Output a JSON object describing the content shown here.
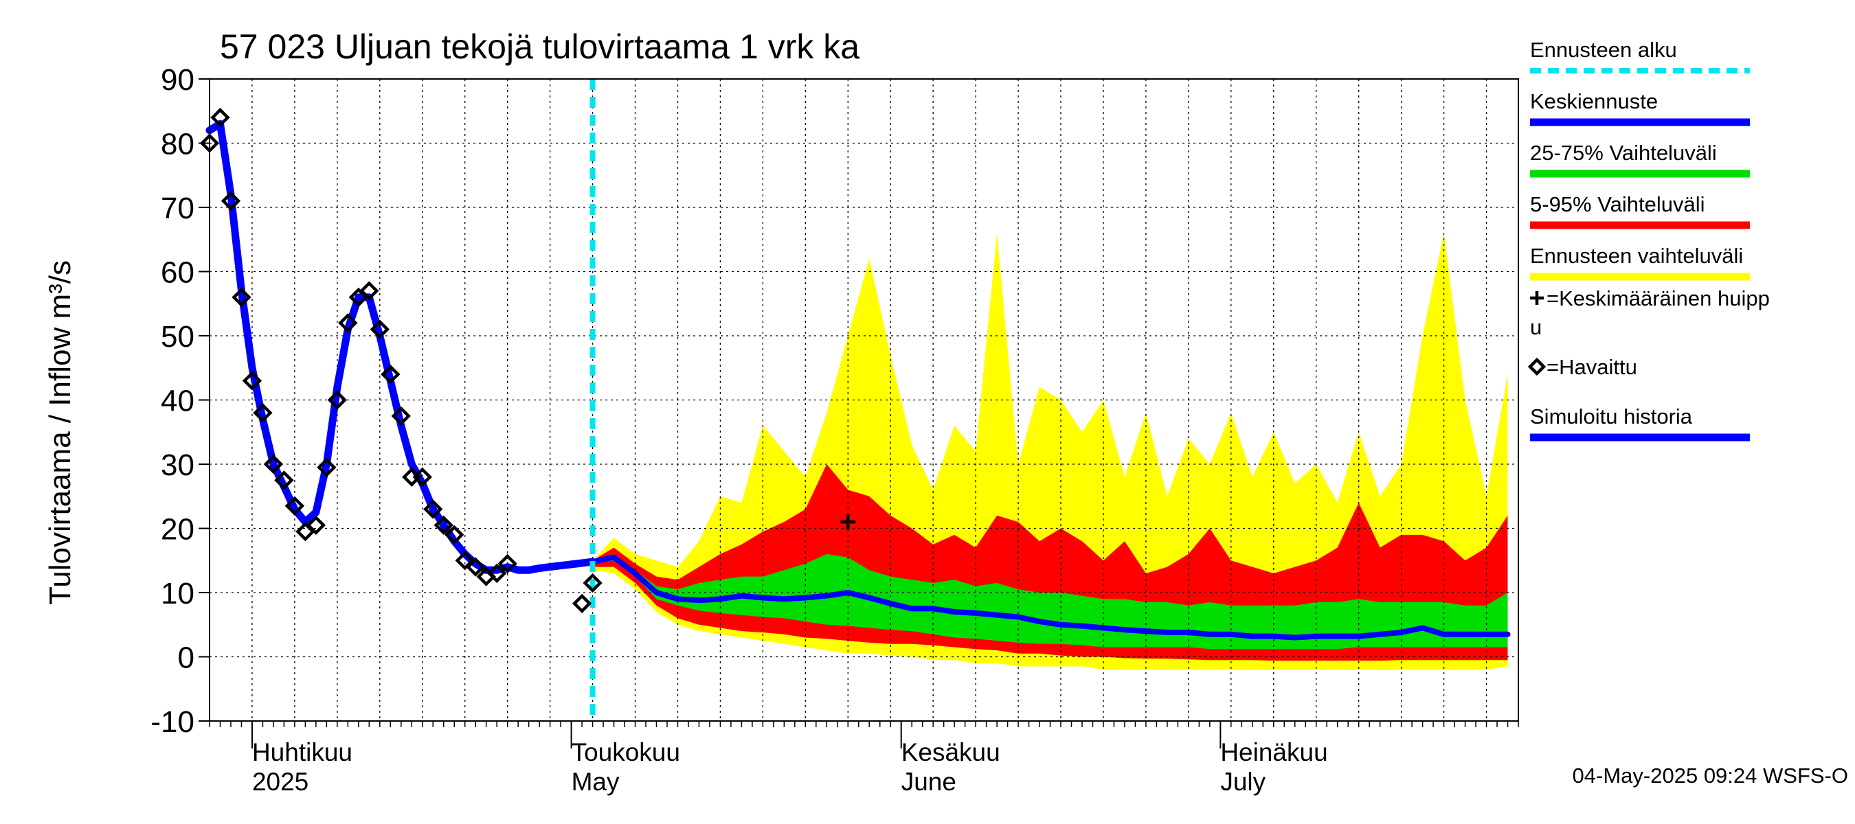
{
  "chart_data": {
    "type": "area",
    "title": "57 023 Uljuan tekojä tulovirtaama 1 vrk ka",
    "ylabel": "Tulovirtaama / Inflow   m³/s",
    "ylim": [
      -10,
      90
    ],
    "yticks": [
      -10,
      0,
      10,
      20,
      30,
      40,
      50,
      60,
      70,
      80,
      90
    ],
    "xlim": [
      "2025-03-28",
      "2025-07-29"
    ],
    "x_month_labels": [
      {
        "date": "2025-04-01",
        "fi": "Huhtikuu",
        "en": "2025"
      },
      {
        "date": "2025-05-01",
        "fi": "Toukokuu",
        "en": "May"
      },
      {
        "date": "2025-06-01",
        "fi": "Kesäkuu",
        "en": "June"
      },
      {
        "date": "2025-07-01",
        "fi": "Heinäkuu",
        "en": "July"
      }
    ],
    "grid": true,
    "legend_position": "right",
    "forecast_start": "2025-05-03",
    "footer": "04-May-2025 09:24 WSFS-O",
    "legend": [
      {
        "label": "Ennusteen alku",
        "color": "#00e5ee",
        "style": "dashed"
      },
      {
        "label": "Keskiennuste",
        "color": "#0000ff",
        "style": "solid"
      },
      {
        "label": "25-75% Vaihteluväli",
        "color": "#00dd00",
        "style": "solid"
      },
      {
        "label": "5-95% Vaihteluväli",
        "color": "#ff0000",
        "style": "solid"
      },
      {
        "label": "Ennusteen vaihteluväli",
        "color": "#ffff00",
        "style": "solid"
      },
      {
        "label": "=Keskimääräinen huippu",
        "color": "#000000",
        "style": "plus"
      },
      {
        "label": "=Havaittu",
        "color": "#000000",
        "style": "diamond"
      },
      {
        "label": "Simuloitu historia",
        "color": "#0000ff",
        "style": "solid"
      }
    ],
    "observed": {
      "name": "Havaittu",
      "points": [
        [
          "2025-03-28",
          80
        ],
        [
          "2025-03-29",
          84
        ],
        [
          "2025-03-30",
          71
        ],
        [
          "2025-03-31",
          56
        ],
        [
          "2025-04-01",
          43
        ],
        [
          "2025-04-02",
          38
        ],
        [
          "2025-04-03",
          30
        ],
        [
          "2025-04-04",
          27.5
        ],
        [
          "2025-04-05",
          23.5
        ],
        [
          "2025-04-06",
          19.5
        ],
        [
          "2025-04-07",
          20.5
        ],
        [
          "2025-04-08",
          29.5
        ],
        [
          "2025-04-09",
          40
        ],
        [
          "2025-04-10",
          52
        ],
        [
          "2025-04-11",
          56
        ],
        [
          "2025-04-12",
          57
        ],
        [
          "2025-04-13",
          51
        ],
        [
          "2025-04-14",
          44
        ],
        [
          "2025-04-15",
          37.5
        ],
        [
          "2025-04-16",
          28
        ],
        [
          "2025-04-17",
          28
        ],
        [
          "2025-04-18",
          23
        ],
        [
          "2025-04-19",
          20.5
        ],
        [
          "2025-04-20",
          19
        ],
        [
          "2025-04-21",
          15
        ],
        [
          "2025-04-22",
          14
        ],
        [
          "2025-04-23",
          12.5
        ],
        [
          "2025-04-24",
          13
        ],
        [
          "2025-04-25",
          14.5
        ],
        [
          "2025-05-02",
          8.3
        ],
        [
          "2025-05-03",
          11.5
        ]
      ]
    },
    "simulated_history": {
      "name": "Simuloitu historia",
      "points": [
        [
          "2025-03-28",
          82
        ],
        [
          "2025-03-29",
          83
        ],
        [
          "2025-03-30",
          72
        ],
        [
          "2025-03-31",
          57
        ],
        [
          "2025-04-01",
          45
        ],
        [
          "2025-04-02",
          37
        ],
        [
          "2025-04-03",
          30
        ],
        [
          "2025-04-04",
          26.5
        ],
        [
          "2025-04-05",
          23
        ],
        [
          "2025-04-06",
          21
        ],
        [
          "2025-04-07",
          22.5
        ],
        [
          "2025-04-08",
          30
        ],
        [
          "2025-04-09",
          42
        ],
        [
          "2025-04-10",
          51
        ],
        [
          "2025-04-11",
          56
        ],
        [
          "2025-04-12",
          56
        ],
        [
          "2025-04-13",
          50
        ],
        [
          "2025-04-14",
          43
        ],
        [
          "2025-04-15",
          36
        ],
        [
          "2025-04-16",
          30
        ],
        [
          "2025-04-17",
          27
        ],
        [
          "2025-04-18",
          23
        ],
        [
          "2025-04-19",
          20.5
        ],
        [
          "2025-04-20",
          18
        ],
        [
          "2025-04-21",
          16
        ],
        [
          "2025-04-22",
          14.5
        ],
        [
          "2025-04-23",
          13.5
        ],
        [
          "2025-04-24",
          13.5
        ],
        [
          "2025-04-25",
          14
        ],
        [
          "2025-04-26",
          13.5
        ],
        [
          "2025-04-27",
          13.5
        ],
        [
          "2025-04-28",
          13.8
        ],
        [
          "2025-04-29",
          14
        ],
        [
          "2025-04-30",
          14.2
        ],
        [
          "2025-05-01",
          14.4
        ],
        [
          "2025-05-02",
          14.6
        ],
        [
          "2025-05-03",
          14.8
        ]
      ]
    },
    "average_peak": {
      "date": "2025-05-27",
      "value": 21
    },
    "forecast": {
      "dates": [
        "2025-05-03",
        "2025-05-05",
        "2025-05-07",
        "2025-05-09",
        "2025-05-11",
        "2025-05-13",
        "2025-05-15",
        "2025-05-17",
        "2025-05-19",
        "2025-05-21",
        "2025-05-23",
        "2025-05-25",
        "2025-05-27",
        "2025-05-29",
        "2025-05-31",
        "2025-06-02",
        "2025-06-04",
        "2025-06-06",
        "2025-06-08",
        "2025-06-10",
        "2025-06-12",
        "2025-06-14",
        "2025-06-16",
        "2025-06-18",
        "2025-06-20",
        "2025-06-22",
        "2025-06-24",
        "2025-06-26",
        "2025-06-28",
        "2025-06-30",
        "2025-07-02",
        "2025-07-04",
        "2025-07-06",
        "2025-07-08",
        "2025-07-10",
        "2025-07-12",
        "2025-07-14",
        "2025-07-16",
        "2025-07-18",
        "2025-07-20",
        "2025-07-22",
        "2025-07-24",
        "2025-07-26",
        "2025-07-28"
      ],
      "max": [
        15,
        18.5,
        16,
        15,
        14,
        18,
        25,
        24,
        36,
        32,
        28,
        38,
        50,
        62,
        47,
        33,
        26,
        36,
        32,
        66,
        30,
        42,
        40,
        35,
        40,
        28,
        38,
        25,
        34,
        30,
        38,
        28,
        35,
        27,
        30,
        24,
        35,
        25,
        30,
        50,
        66,
        40,
        25,
        44
      ],
      "p95": [
        15,
        17,
        14.5,
        12.5,
        12,
        14,
        16,
        17.5,
        19.5,
        21,
        23,
        30,
        26,
        25,
        22,
        20,
        17.5,
        19,
        17,
        22,
        21,
        18,
        20,
        18,
        15,
        18,
        13,
        14,
        16,
        20,
        15,
        14,
        13,
        14,
        15,
        17,
        24,
        17,
        19,
        19,
        18,
        15,
        17,
        22
      ],
      "p75": [
        15,
        16,
        13.5,
        11,
        10.5,
        11.5,
        12,
        12.5,
        12.5,
        13.5,
        14.5,
        16,
        15.5,
        13.5,
        12.5,
        12,
        11.5,
        12,
        11,
        11.5,
        10.5,
        10,
        10,
        9.5,
        9,
        9,
        8.5,
        8.5,
        8,
        8.5,
        8,
        8,
        8,
        8,
        8.5,
        8.5,
        9,
        8.5,
        8.5,
        8.5,
        8.5,
        8,
        8,
        10
      ],
      "median": [
        14.8,
        15.5,
        13,
        10,
        9,
        8.8,
        9,
        9.5,
        9.2,
        9,
        9.2,
        9.5,
        10,
        9.2,
        8.3,
        7.5,
        7.5,
        7,
        6.8,
        6.5,
        6.2,
        5.5,
        5,
        4.8,
        4.5,
        4.2,
        4,
        3.8,
        3.8,
        3.5,
        3.5,
        3.2,
        3.2,
        3,
        3.2,
        3.2,
        3.2,
        3.5,
        3.8,
        4.5,
        3.5,
        3.5,
        3.5,
        3.5
      ],
      "p25": [
        14.5,
        15,
        12.5,
        9,
        8,
        7.2,
        6.8,
        6.5,
        6.2,
        6,
        5.5,
        5,
        4.8,
        4.5,
        4.2,
        4,
        3.5,
        3,
        2.8,
        2.5,
        2.2,
        2,
        2,
        1.8,
        1.5,
        1.5,
        1.5,
        1.5,
        1.5,
        1.2,
        1.2,
        1.2,
        1.2,
        1.2,
        1.2,
        1.2,
        1.5,
        1.5,
        1.5,
        1.5,
        1.5,
        1.5,
        1.5,
        1.5
      ],
      "p5": [
        14,
        14,
        11.5,
        8,
        6,
        5,
        4.5,
        4,
        3.8,
        3.5,
        3,
        2.8,
        2.5,
        2.2,
        2,
        2,
        1.8,
        1.5,
        1.2,
        1,
        0.5,
        0.5,
        0.2,
        0,
        0,
        -0.2,
        -0.3,
        -0.3,
        -0.4,
        -0.5,
        -0.5,
        -0.5,
        -0.6,
        -0.6,
        -0.6,
        -0.6,
        -0.6,
        -0.6,
        -0.5,
        -0.5,
        -0.5,
        -0.5,
        -0.5,
        -0.5
      ],
      "min": [
        13.5,
        13,
        10.5,
        7,
        5,
        4,
        3.5,
        3,
        2.5,
        2,
        1.5,
        1,
        0.5,
        0.5,
        0.2,
        0,
        -0.5,
        -0.5,
        -1,
        -1,
        -1.5,
        -1.5,
        -1.5,
        -1.5,
        -2,
        -2,
        -2,
        -2,
        -2,
        -2,
        -2,
        -2,
        -2,
        -2,
        -2,
        -2,
        -2,
        -2,
        -2,
        -2,
        -2,
        -2,
        -2,
        -1.5
      ]
    }
  }
}
